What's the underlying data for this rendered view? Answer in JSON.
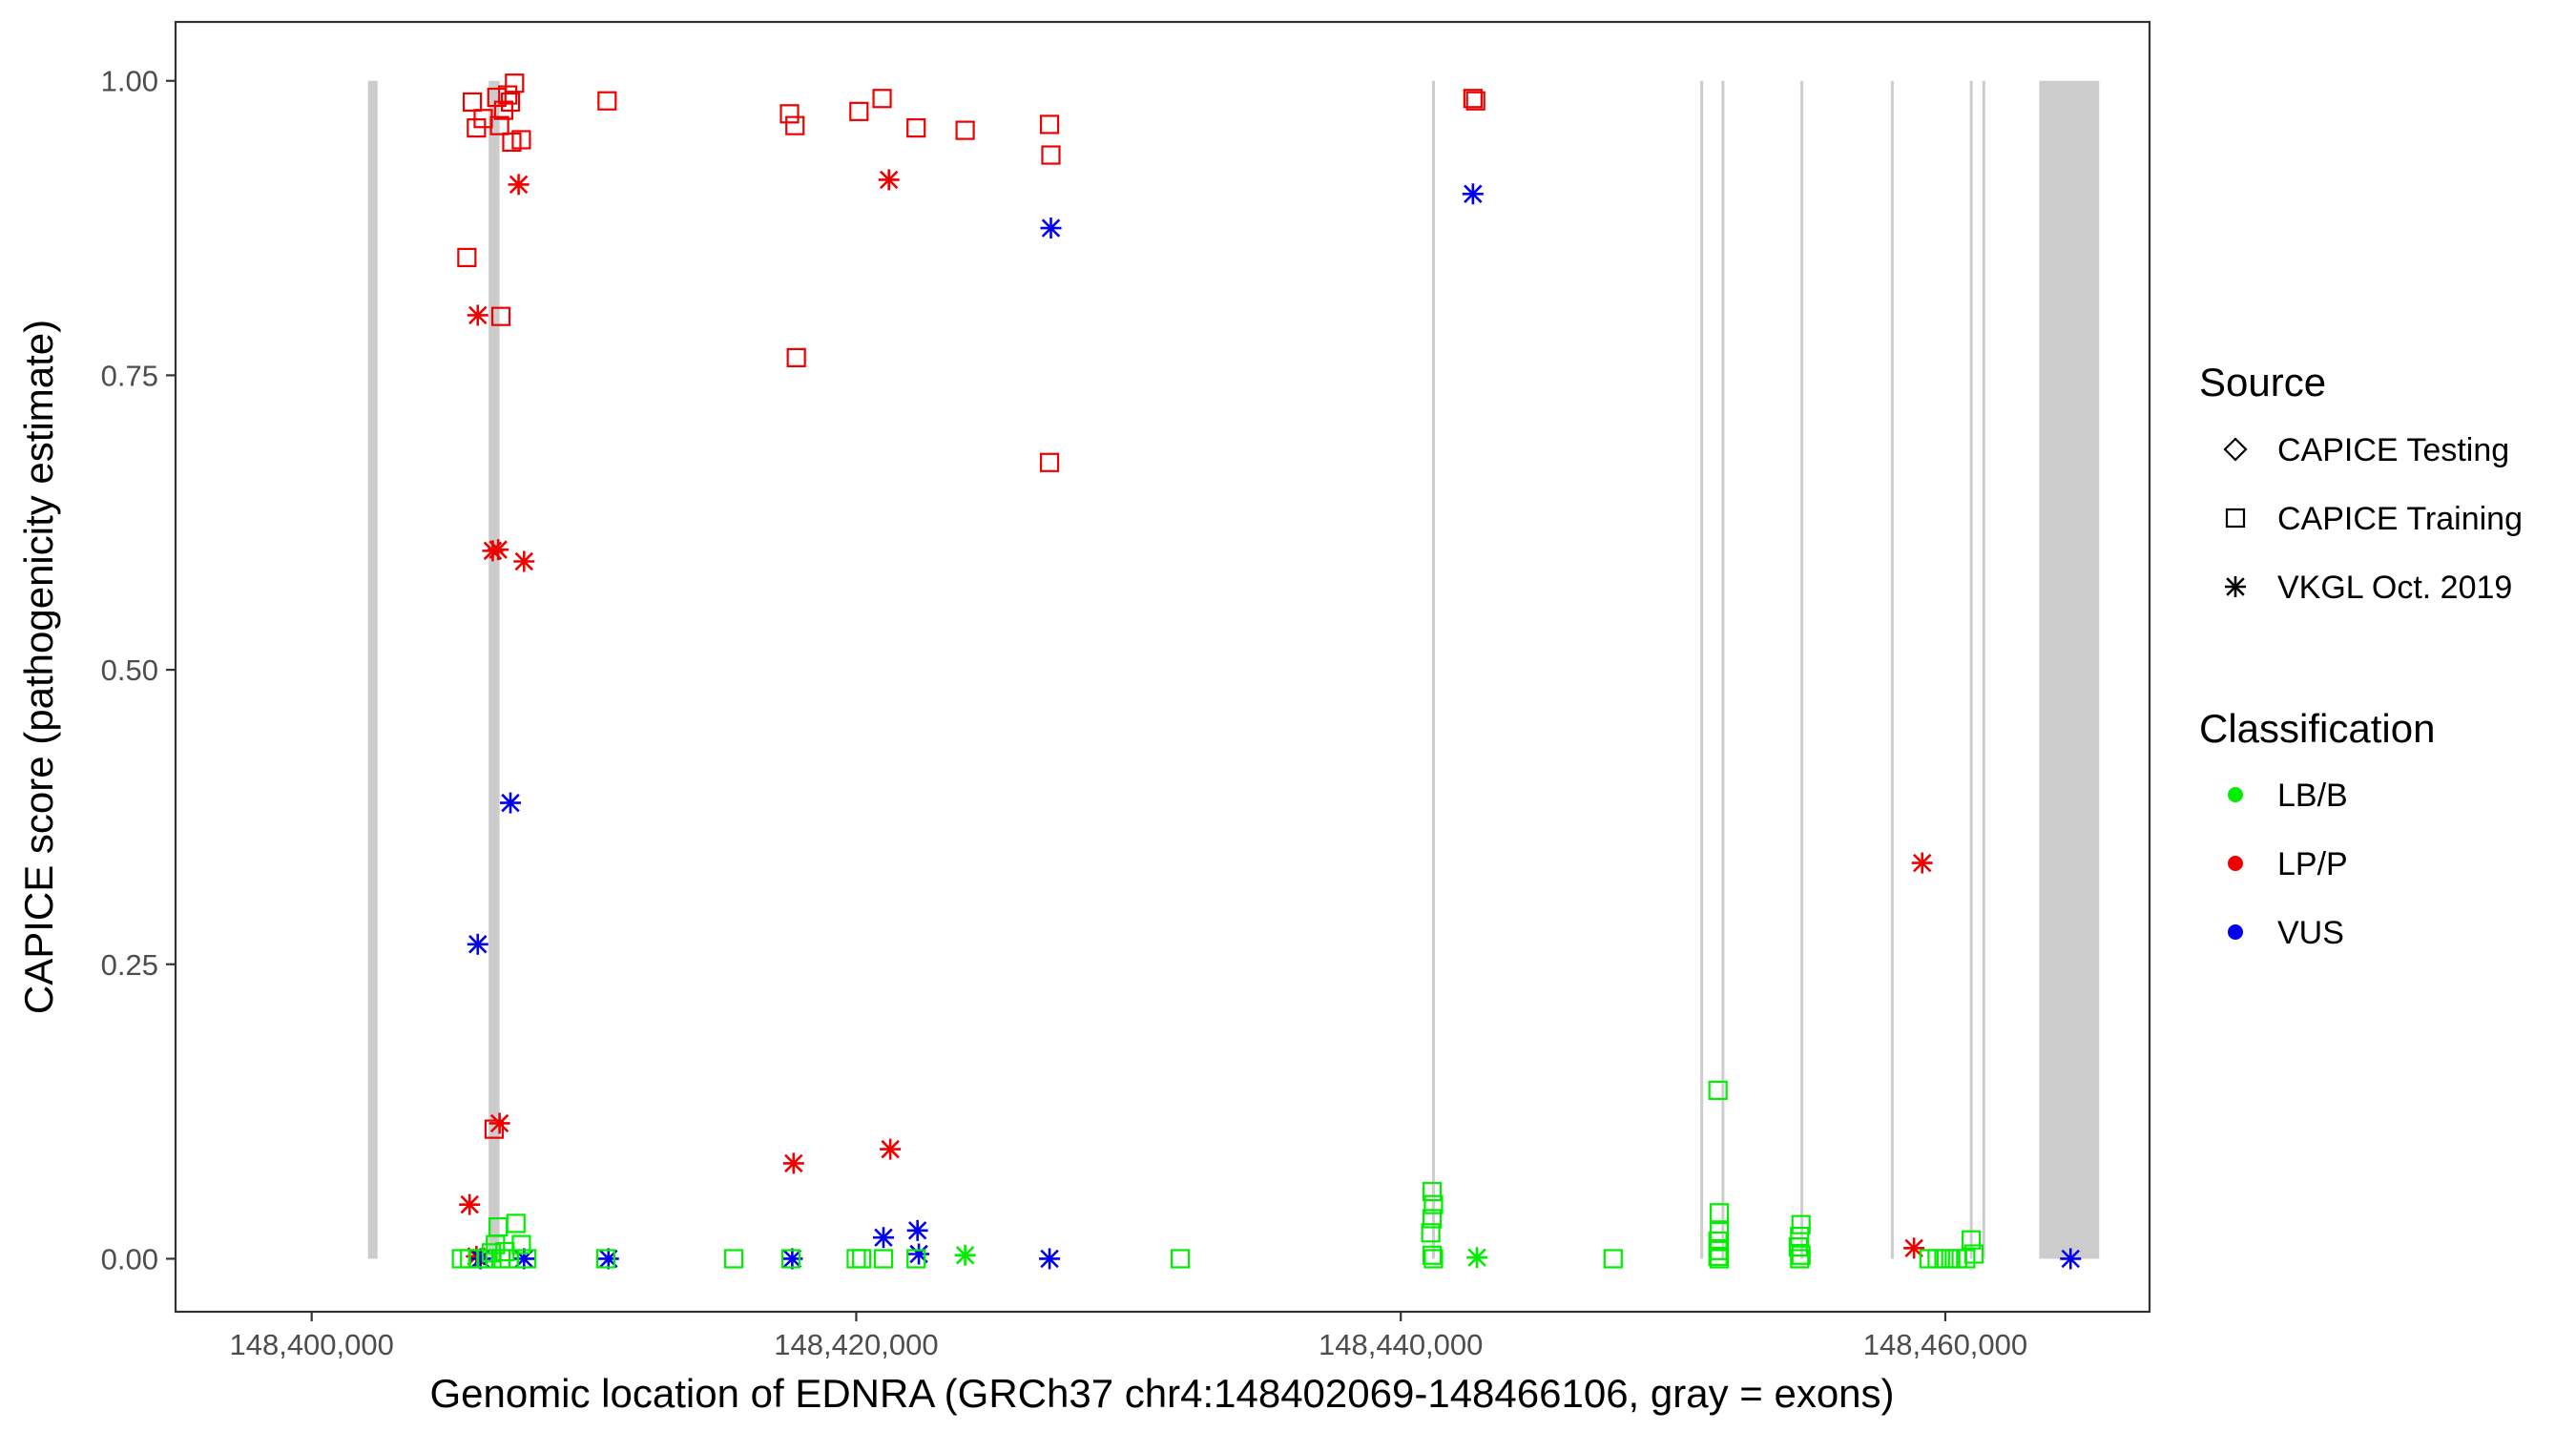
{
  "chart_data": {
    "type": "scatter",
    "xlabel": "Genomic location of EDNRA (GRCh37 chr4:148402069-148466106, gray = exons)",
    "ylabel": "CAPICE score (pathogenicity estimate)",
    "xlim": [
      148395000,
      148467500
    ],
    "ylim": [
      -0.045,
      1.05
    ],
    "xticks": [
      148400000,
      148420000,
      148440000,
      148460000
    ],
    "xtick_labels": [
      "148,400,000",
      "148,420,000",
      "148,440,000",
      "148,460,000"
    ],
    "yticks": [
      0,
      0.25,
      0.5,
      0.75,
      1
    ],
    "ytick_labels": [
      "0.00",
      "0.25",
      "0.50",
      "0.75",
      "1.00"
    ],
    "grid": false,
    "legend_position": "right",
    "exons": [
      {
        "start": 148402069,
        "end": 148402420
      },
      {
        "start": 148406500,
        "end": 148406900
      },
      {
        "start": 148441150,
        "end": 148441200
      },
      {
        "start": 148451000,
        "end": 148451050
      },
      {
        "start": 148451780,
        "end": 148451830
      },
      {
        "start": 148454680,
        "end": 148454730
      },
      {
        "start": 148458000,
        "end": 148458050
      },
      {
        "start": 148460900,
        "end": 148460950
      },
      {
        "start": 148461360,
        "end": 148461410
      },
      {
        "start": 148463450,
        "end": 148465650
      }
    ],
    "legends": [
      {
        "title": "Source",
        "entries": [
          "CAPICE Testing",
          "CAPICE Training",
          "VKGL Oct. 2019"
        ],
        "shapes": [
          "diamond",
          "square",
          "asterisk"
        ]
      },
      {
        "title": "Classification",
        "entries": [
          "LB/B",
          "LP/P",
          "VUS"
        ],
        "colors": [
          "#00ee00",
          "#ee0000",
          "#0000ee"
        ]
      }
    ],
    "series": [
      {
        "source": "CAPICE Training",
        "classification": "LP/P",
        "shape": "square",
        "color": "#ee0000",
        "points": [
          {
            "x": 148405900,
            "y": 0.982
          },
          {
            "x": 148406050,
            "y": 0.96
          },
          {
            "x": 148406300,
            "y": 0.968
          },
          {
            "x": 148406800,
            "y": 0.986
          },
          {
            "x": 148406900,
            "y": 0.962
          },
          {
            "x": 148407050,
            "y": 0.975
          },
          {
            "x": 148407200,
            "y": 0.988
          },
          {
            "x": 148407300,
            "y": 0.982
          },
          {
            "x": 148407450,
            "y": 0.998
          },
          {
            "x": 148407350,
            "y": 0.948
          },
          {
            "x": 148407700,
            "y": 0.95
          },
          {
            "x": 148405700,
            "y": 0.85
          },
          {
            "x": 148406950,
            "y": 0.8
          },
          {
            "x": 148406700,
            "y": 0.11
          },
          {
            "x": 148410850,
            "y": 0.983
          },
          {
            "x": 148417550,
            "y": 0.972
          },
          {
            "x": 148417750,
            "y": 0.962
          },
          {
            "x": 148417800,
            "y": 0.765
          },
          {
            "x": 148420100,
            "y": 0.974
          },
          {
            "x": 148420950,
            "y": 0.985
          },
          {
            "x": 148422200,
            "y": 0.96
          },
          {
            "x": 148424000,
            "y": 0.958
          },
          {
            "x": 148427100,
            "y": 0.963
          },
          {
            "x": 148427150,
            "y": 0.937
          },
          {
            "x": 148427100,
            "y": 0.676
          },
          {
            "x": 148442650,
            "y": 0.985
          },
          {
            "x": 148442750,
            "y": 0.983
          }
        ]
      },
      {
        "source": "VKGL Oct. 2019",
        "classification": "LP/P",
        "shape": "asterisk",
        "color": "#ee0000",
        "points": [
          {
            "x": 148407600,
            "y": 0.912
          },
          {
            "x": 148406100,
            "y": 0.801
          },
          {
            "x": 148406650,
            "y": 0.601
          },
          {
            "x": 148406850,
            "y": 0.602
          },
          {
            "x": 148407800,
            "y": 0.592
          },
          {
            "x": 148406900,
            "y": 0.115
          },
          {
            "x": 148405800,
            "y": 0.046
          },
          {
            "x": 148406050,
            "y": 0.002
          },
          {
            "x": 148421200,
            "y": 0.916
          },
          {
            "x": 148417700,
            "y": 0.081
          },
          {
            "x": 148421250,
            "y": 0.093
          },
          {
            "x": 148459150,
            "y": 0.336
          },
          {
            "x": 148458850,
            "y": 0.009
          }
        ]
      },
      {
        "source": "VKGL Oct. 2019",
        "classification": "VUS",
        "shape": "asterisk",
        "color": "#0000ee",
        "points": [
          {
            "x": 148442650,
            "y": 0.904
          },
          {
            "x": 148427150,
            "y": 0.875
          },
          {
            "x": 148407300,
            "y": 0.387
          },
          {
            "x": 148406100,
            "y": 0.267
          },
          {
            "x": 148421000,
            "y": 0.018
          },
          {
            "x": 148422250,
            "y": 0.024
          },
          {
            "x": 148422300,
            "y": 0.004
          },
          {
            "x": 148406200,
            "y": 0.0
          },
          {
            "x": 148407800,
            "y": 0.0
          },
          {
            "x": 148410900,
            "y": 0.0
          },
          {
            "x": 148417650,
            "y": 0.0
          },
          {
            "x": 148427100,
            "y": 0.0
          },
          {
            "x": 148464600,
            "y": 0.0
          }
        ]
      },
      {
        "source": "VKGL Oct. 2019",
        "classification": "LB/B",
        "shape": "asterisk",
        "color": "#00ee00",
        "points": [
          {
            "x": 148424000,
            "y": 0.003
          },
          {
            "x": 148442800,
            "y": 0.001
          }
        ]
      },
      {
        "source": "CAPICE Training",
        "classification": "LB/B",
        "shape": "square",
        "color": "#00ee00",
        "points": [
          {
            "x": 148405500,
            "y": 0.0
          },
          {
            "x": 148405800,
            "y": 0.0
          },
          {
            "x": 148406100,
            "y": 0.0
          },
          {
            "x": 148406400,
            "y": 0.0
          },
          {
            "x": 148406600,
            "y": 0.005
          },
          {
            "x": 148406750,
            "y": 0.012
          },
          {
            "x": 148406850,
            "y": 0.027
          },
          {
            "x": 148406950,
            "y": 0.0
          },
          {
            "x": 148407100,
            "y": 0.006
          },
          {
            "x": 148407250,
            "y": 0.0
          },
          {
            "x": 148407500,
            "y": 0.03
          },
          {
            "x": 148407700,
            "y": 0.012
          },
          {
            "x": 148407900,
            "y": 0.0
          },
          {
            "x": 148410800,
            "y": 0.0
          },
          {
            "x": 148415500,
            "y": 0.0
          },
          {
            "x": 148417600,
            "y": 0.0
          },
          {
            "x": 148420000,
            "y": 0.0
          },
          {
            "x": 148420200,
            "y": 0.0
          },
          {
            "x": 148421000,
            "y": 0.0
          },
          {
            "x": 148422200,
            "y": 0.0
          },
          {
            "x": 148431900,
            "y": 0.0
          },
          {
            "x": 148441150,
            "y": 0.057
          },
          {
            "x": 148441200,
            "y": 0.046
          },
          {
            "x": 148441150,
            "y": 0.034
          },
          {
            "x": 148441100,
            "y": 0.022
          },
          {
            "x": 148441150,
            "y": 0.003
          },
          {
            "x": 148441200,
            "y": 0.0
          },
          {
            "x": 148447800,
            "y": 0.0
          },
          {
            "x": 148451650,
            "y": 0.143
          },
          {
            "x": 148451700,
            "y": 0.039
          },
          {
            "x": 148451700,
            "y": 0.023
          },
          {
            "x": 148451650,
            "y": 0.015
          },
          {
            "x": 148451700,
            "y": 0.007
          },
          {
            "x": 148451650,
            "y": 0.002
          },
          {
            "x": 148451700,
            "y": 0.0
          },
          {
            "x": 148454700,
            "y": 0.029
          },
          {
            "x": 148454650,
            "y": 0.019
          },
          {
            "x": 148454600,
            "y": 0.01
          },
          {
            "x": 148454700,
            "y": 0.003
          },
          {
            "x": 148454650,
            "y": 0.0
          },
          {
            "x": 148459400,
            "y": 0.0
          },
          {
            "x": 148459700,
            "y": 0.0
          },
          {
            "x": 148459950,
            "y": 0.0
          },
          {
            "x": 148460200,
            "y": 0.0
          },
          {
            "x": 148460450,
            "y": 0.0
          },
          {
            "x": 148460750,
            "y": 0.0
          },
          {
            "x": 148460950,
            "y": 0.016
          },
          {
            "x": 148461050,
            "y": 0.004
          }
        ]
      }
    ]
  }
}
